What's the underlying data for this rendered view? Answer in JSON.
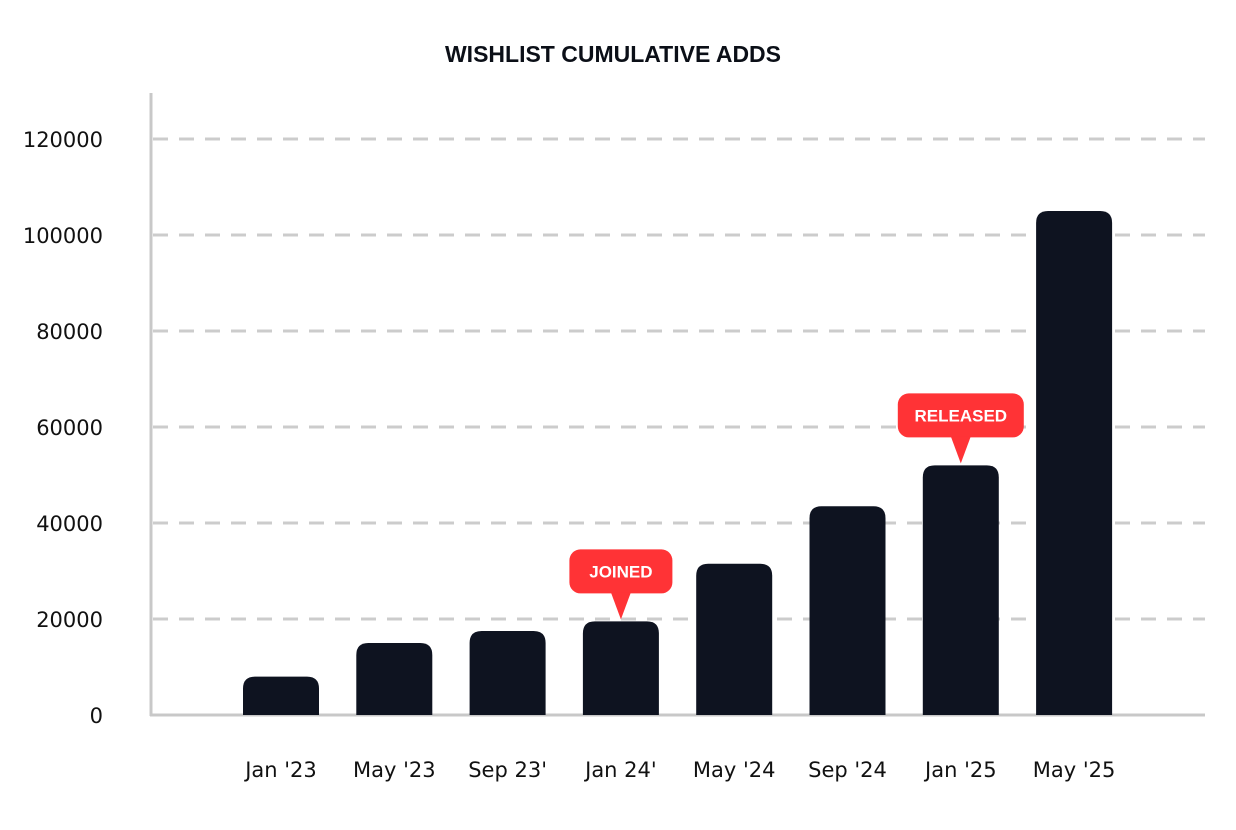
{
  "chart_data": {
    "type": "bar",
    "title": "WISHLIST CUMULATIVE ADDS",
    "xlabel": "",
    "ylabel": "",
    "categories": [
      "Jan '23",
      "May '23",
      "Sep 23'",
      "Jan 24'",
      "May '24",
      "Sep '24",
      "Jan '25",
      "May '25"
    ],
    "values": [
      8000,
      15000,
      17500,
      19500,
      31500,
      43500,
      52000,
      105000
    ],
    "ylim": [
      0,
      130000
    ],
    "yticks": [
      0,
      20000,
      40000,
      60000,
      80000,
      100000,
      120000
    ],
    "grid": "horizontal dashed",
    "legend": "none",
    "annotations": [
      {
        "label": "JOINED",
        "category": "Jan 24'"
      },
      {
        "label": "RELEASED",
        "category": "Jan '25"
      }
    ],
    "colors": {
      "bar": "#0e1320",
      "annotation": "#ff3336",
      "grid": "#cccccc",
      "axis": "#c8c8c8"
    }
  }
}
